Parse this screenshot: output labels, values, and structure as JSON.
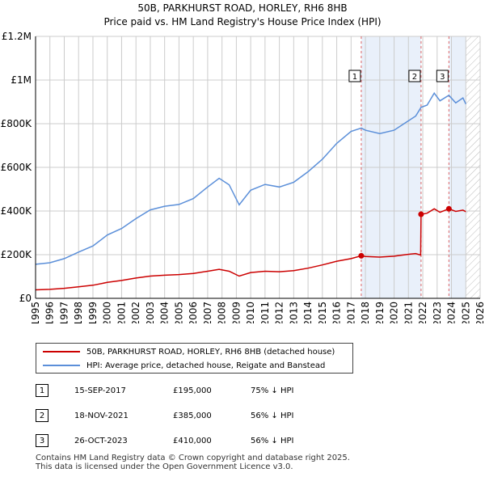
{
  "header": {
    "title": "50B, PARKHURST ROAD, HORLEY, RH6 8HB",
    "subtitle": "Price paid vs. HM Land Registry's House Price Index (HPI)"
  },
  "chart_data": {
    "type": "line",
    "title": "50B, PARKHURST ROAD, HORLEY, RH6 8HB",
    "subtitle": "Price paid vs. HM Land Registry's House Price Index (HPI)",
    "xlim": [
      1995,
      2026
    ],
    "ylim": [
      0,
      1200000
    ],
    "grid": true,
    "x_ticks": [
      1995,
      1996,
      1997,
      1998,
      1999,
      2000,
      2001,
      2002,
      2003,
      2004,
      2005,
      2006,
      2007,
      2008,
      2009,
      2010,
      2011,
      2012,
      2013,
      2014,
      2015,
      2016,
      2017,
      2018,
      2019,
      2020,
      2021,
      2022,
      2023,
      2024,
      2025,
      2026
    ],
    "y_ticks": [
      {
        "value": 0,
        "label": "£0"
      },
      {
        "value": 200000,
        "label": "£200K"
      },
      {
        "value": 400000,
        "label": "£400K"
      },
      {
        "value": 600000,
        "label": "£600K"
      },
      {
        "value": 800000,
        "label": "£800K"
      },
      {
        "value": 1000000,
        "label": "£1M"
      },
      {
        "value": 1200000,
        "label": "£1.2M"
      }
    ],
    "series": [
      {
        "name": "50B, PARKHURST ROAD, HORLEY, RH6 8HB (detached house)",
        "color": "#cc0000",
        "points": [
          [
            1995.0,
            39000
          ],
          [
            1996.0,
            41000
          ],
          [
            1997.0,
            46000
          ],
          [
            1998.0,
            53000
          ],
          [
            1999.0,
            60000
          ],
          [
            2000.0,
            73000
          ],
          [
            2001.0,
            82000
          ],
          [
            2002.0,
            93000
          ],
          [
            2003.0,
            102000
          ],
          [
            2004.0,
            106000
          ],
          [
            2005.0,
            109000
          ],
          [
            2006.0,
            114000
          ],
          [
            2007.0,
            124000
          ],
          [
            2007.8,
            133000
          ],
          [
            2008.5,
            124000
          ],
          [
            2009.2,
            102000
          ],
          [
            2010.0,
            118000
          ],
          [
            2011.0,
            124000
          ],
          [
            2012.0,
            122000
          ],
          [
            2013.0,
            127000
          ],
          [
            2014.0,
            138000
          ],
          [
            2015.0,
            153000
          ],
          [
            2016.0,
            170000
          ],
          [
            2017.0,
            182000
          ],
          [
            2017.71,
            195000
          ],
          [
            2018.0,
            192000
          ],
          [
            2019.0,
            189000
          ],
          [
            2020.0,
            193000
          ],
          [
            2020.8,
            200000
          ],
          [
            2021.5,
            205000
          ],
          [
            2021.85,
            198000
          ],
          [
            2021.88,
            385000
          ],
          [
            2022.3,
            390000
          ],
          [
            2022.8,
            410000
          ],
          [
            2023.2,
            394000
          ],
          [
            2023.82,
            410000
          ],
          [
            2024.3,
            398000
          ],
          [
            2024.8,
            404000
          ],
          [
            2025.0,
            397000
          ]
        ]
      },
      {
        "name": "HPI: Average price, detached house, Reigate and Banstead",
        "color": "#5b8fd9",
        "points": [
          [
            1995.0,
            156000
          ],
          [
            1996.0,
            163000
          ],
          [
            1997.0,
            182000
          ],
          [
            1998.0,
            212000
          ],
          [
            1999.0,
            240000
          ],
          [
            2000.0,
            290000
          ],
          [
            2001.0,
            320000
          ],
          [
            2002.0,
            365000
          ],
          [
            2003.0,
            405000
          ],
          [
            2004.0,
            422000
          ],
          [
            2005.0,
            430000
          ],
          [
            2006.0,
            457000
          ],
          [
            2007.0,
            510000
          ],
          [
            2007.8,
            550000
          ],
          [
            2008.5,
            520000
          ],
          [
            2009.2,
            428000
          ],
          [
            2010.0,
            495000
          ],
          [
            2011.0,
            522000
          ],
          [
            2012.0,
            510000
          ],
          [
            2013.0,
            532000
          ],
          [
            2014.0,
            580000
          ],
          [
            2015.0,
            637000
          ],
          [
            2016.0,
            710000
          ],
          [
            2017.0,
            765000
          ],
          [
            2017.71,
            780000
          ],
          [
            2018.0,
            770000
          ],
          [
            2019.0,
            755000
          ],
          [
            2020.0,
            770000
          ],
          [
            2020.8,
            805000
          ],
          [
            2021.5,
            835000
          ],
          [
            2021.88,
            875000
          ],
          [
            2022.3,
            885000
          ],
          [
            2022.8,
            940000
          ],
          [
            2023.2,
            905000
          ],
          [
            2023.82,
            930000
          ],
          [
            2024.3,
            895000
          ],
          [
            2024.8,
            918000
          ],
          [
            2025.0,
            890000
          ]
        ]
      }
    ],
    "hpi_shading": {
      "color": "#dbe6f6",
      "opacity": 0.6
    },
    "sales": [
      {
        "label": "1",
        "x": 2017.71,
        "price": 195000
      },
      {
        "label": "2",
        "x": 2021.88,
        "price": 385000
      },
      {
        "label": "3",
        "x": 2023.82,
        "price": 410000
      }
    ],
    "future_hatch_from": 2025.0
  },
  "legend": {
    "items": [
      {
        "label": "50B, PARKHURST ROAD, HORLEY, RH6 8HB (detached house)",
        "color": "#cc0000"
      },
      {
        "label": "HPI: Average price, detached house, Reigate and Banstead",
        "color": "#5b8fd9"
      }
    ]
  },
  "sales_table": [
    {
      "num": "1",
      "date": "15-SEP-2017",
      "price": "£195,000",
      "hpi": "75% ↓ HPI"
    },
    {
      "num": "2",
      "date": "18-NOV-2021",
      "price": "£385,000",
      "hpi": "56% ↓ HPI"
    },
    {
      "num": "3",
      "date": "26-OCT-2023",
      "price": "£410,000",
      "hpi": "56% ↓ HPI"
    }
  ],
  "footer": {
    "line1": "Contains HM Land Registry data © Crown copyright and database right 2025.",
    "line2": "This data is licensed under the Open Government Licence v3.0."
  }
}
